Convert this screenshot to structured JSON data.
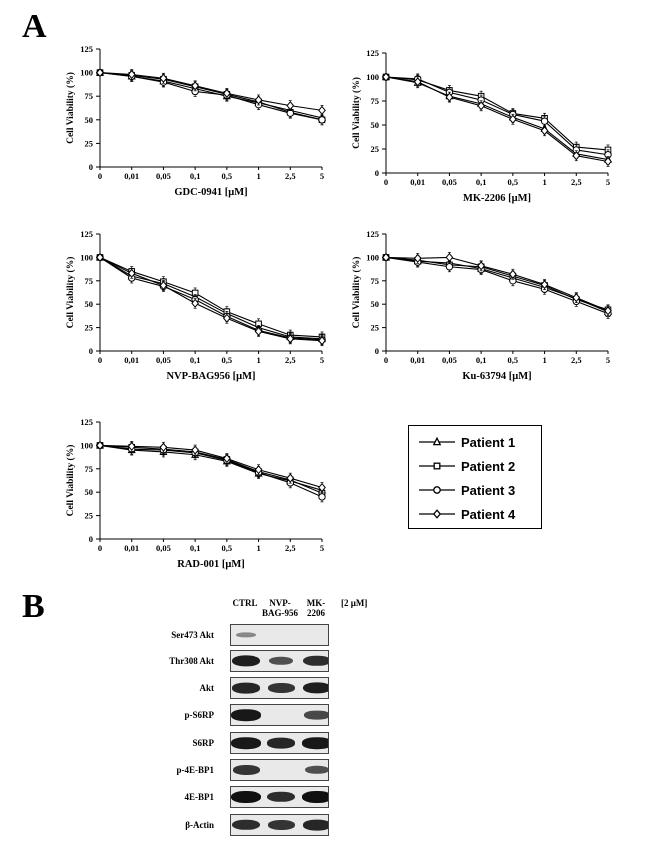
{
  "panel_labels": {
    "a": "A",
    "b": "B"
  },
  "chart_data": [
    {
      "type": "line",
      "ylabel": "Cell Viability (%)",
      "xlabel": "GDC-0941 [μM]",
      "categories": [
        "0",
        "0,01",
        "0,05",
        "0,1",
        "0,5",
        "1",
        "2,5",
        "5"
      ],
      "y_ticks": [
        "0",
        "25",
        "50",
        "75",
        "100",
        "125"
      ],
      "ylim": [
        0,
        125
      ],
      "series": [
        {
          "name": "Patient 1",
          "marker": "triangle",
          "values": [
            100,
            96,
            91,
            83,
            75,
            68,
            60,
            52
          ]
        },
        {
          "name": "Patient 2",
          "marker": "square",
          "values": [
            100,
            97,
            93,
            85,
            77,
            69,
            58,
            50
          ]
        },
        {
          "name": "Patient 3",
          "marker": "circle",
          "values": [
            100,
            96,
            90,
            80,
            76,
            66,
            57,
            50
          ]
        },
        {
          "name": "Patient 4",
          "marker": "diamond",
          "values": [
            100,
            98,
            94,
            86,
            78,
            71,
            65,
            60
          ]
        }
      ]
    },
    {
      "type": "line",
      "ylabel": "Cell Viability (%)",
      "xlabel": "MK-2206 [μM]",
      "categories": [
        "0",
        "0,01",
        "0,05",
        "0,1",
        "0,5",
        "1",
        "2,5",
        "5"
      ],
      "y_ticks": [
        "0",
        "25",
        "50",
        "75",
        "100",
        "125"
      ],
      "ylim": [
        0,
        125
      ],
      "series": [
        {
          "name": "Patient 1",
          "marker": "triangle",
          "values": [
            100,
            94,
            80,
            72,
            58,
            46,
            20,
            14
          ]
        },
        {
          "name": "Patient 2",
          "marker": "square",
          "values": [
            100,
            97,
            86,
            80,
            62,
            57,
            27,
            24
          ]
        },
        {
          "name": "Patient 3",
          "marker": "circle",
          "values": [
            100,
            98,
            84,
            76,
            61,
            54,
            24,
            19
          ]
        },
        {
          "name": "Patient 4",
          "marker": "diamond",
          "values": [
            100,
            95,
            79,
            70,
            56,
            44,
            18,
            12
          ]
        }
      ]
    },
    {
      "type": "line",
      "ylabel": "Cell Viability (%)",
      "xlabel": "NVP-BAG956 [μM]",
      "categories": [
        "0",
        "0,01",
        "0,05",
        "0,1",
        "0,5",
        "1",
        "2,5",
        "5"
      ],
      "y_ticks": [
        "0",
        "25",
        "50",
        "75",
        "100",
        "125"
      ],
      "ylim": [
        0,
        125
      ],
      "series": [
        {
          "name": "Patient 1",
          "marker": "triangle",
          "values": [
            100,
            80,
            72,
            58,
            40,
            25,
            15,
            13
          ]
        },
        {
          "name": "Patient 2",
          "marker": "square",
          "values": [
            100,
            85,
            74,
            62,
            42,
            29,
            17,
            15
          ]
        },
        {
          "name": "Patient 3",
          "marker": "circle",
          "values": [
            100,
            78,
            69,
            55,
            37,
            22,
            14,
            12
          ]
        },
        {
          "name": "Patient 4",
          "marker": "diamond",
          "values": [
            100,
            83,
            70,
            51,
            35,
            21,
            13,
            11
          ]
        }
      ]
    },
    {
      "type": "line",
      "ylabel": "Cell Viability (%)",
      "xlabel": "Ku-63794 [μM]",
      "categories": [
        "0",
        "0,01",
        "0,05",
        "0,1",
        "0,5",
        "1",
        "2,5",
        "5"
      ],
      "y_ticks": [
        "0",
        "25",
        "50",
        "75",
        "100",
        "125"
      ],
      "ylim": [
        0,
        125
      ],
      "series": [
        {
          "name": "Patient 1",
          "marker": "triangle",
          "values": [
            100,
            96,
            94,
            88,
            78,
            68,
            56,
            42
          ]
        },
        {
          "name": "Patient 2",
          "marker": "square",
          "values": [
            100,
            97,
            92,
            90,
            80,
            70,
            55,
            44
          ]
        },
        {
          "name": "Patient 3",
          "marker": "circle",
          "values": [
            100,
            95,
            90,
            87,
            75,
            66,
            53,
            40
          ]
        },
        {
          "name": "Patient 4",
          "marker": "diamond",
          "values": [
            100,
            99,
            100,
            91,
            82,
            71,
            57,
            43
          ]
        }
      ]
    },
    {
      "type": "line",
      "ylabel": "Cell Viability (%)",
      "xlabel": "RAD-001 [μM]",
      "categories": [
        "0",
        "0,01",
        "0,05",
        "0,1",
        "0,5",
        "1",
        "2,5",
        "5"
      ],
      "y_ticks": [
        "0",
        "25",
        "50",
        "75",
        "100",
        "125"
      ],
      "ylim": [
        0,
        125
      ],
      "series": [
        {
          "name": "Patient 1",
          "marker": "triangle",
          "values": [
            100,
            95,
            93,
            90,
            83,
            70,
            62,
            52
          ]
        },
        {
          "name": "Patient 2",
          "marker": "square",
          "values": [
            100,
            98,
            96,
            93,
            85,
            72,
            63,
            49
          ]
        },
        {
          "name": "Patient 3",
          "marker": "circle",
          "values": [
            100,
            96,
            95,
            92,
            84,
            71,
            60,
            45
          ]
        },
        {
          "name": "Patient 4",
          "marker": "diamond",
          "values": [
            100,
            99,
            98,
            95,
            86,
            74,
            65,
            55
          ]
        }
      ]
    }
  ],
  "legend": [
    {
      "label": "Patient 1",
      "marker": "triangle"
    },
    {
      "label": "Patient 2",
      "marker": "square"
    },
    {
      "label": "Patient 3",
      "marker": "circle"
    },
    {
      "label": "Patient 4",
      "marker": "diamond"
    }
  ],
  "blot": {
    "columns": [
      "CTRL",
      "NVP-\nBAG-956",
      "MK-\n2206"
    ],
    "concentration": "[2 μM]",
    "rows": [
      {
        "label": "Ser473 Akt",
        "intensity": [
          0.15,
          0.0,
          0.0
        ]
      },
      {
        "label": "Thr308 Akt",
        "intensity": [
          0.9,
          0.55,
          0.8
        ]
      },
      {
        "label": "Akt",
        "intensity": [
          0.85,
          0.75,
          0.9
        ]
      },
      {
        "label": "p-S6RP",
        "intensity": [
          0.95,
          0.0,
          0.6
        ]
      },
      {
        "label": "S6RP",
        "intensity": [
          0.95,
          0.85,
          0.95
        ]
      },
      {
        "label": "p-4E-BP1",
        "intensity": [
          0.75,
          0.0,
          0.55
        ]
      },
      {
        "label": "4E-BP1",
        "intensity": [
          1.0,
          0.8,
          1.0
        ]
      },
      {
        "label": "β-Actin",
        "intensity": [
          0.8,
          0.75,
          0.85
        ]
      }
    ]
  }
}
